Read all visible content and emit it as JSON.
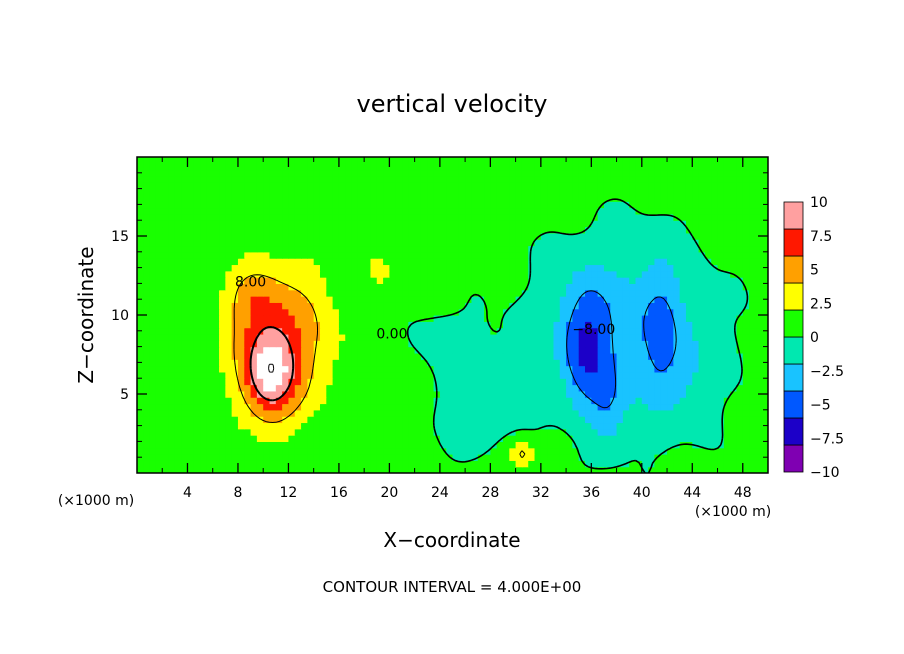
{
  "chart_data": {
    "type": "heatmap",
    "title": "vertical velocity",
    "xlabel": "X−coordinate",
    "ylabel": "Z−coordinate",
    "x_unit_left": "(×1000 m)",
    "x_unit_right": "(×1000 m)",
    "footer": "CONTOUR INTERVAL = 4.000E+00",
    "xlim": [
      0,
      50
    ],
    "ylim": [
      0,
      20
    ],
    "x_ticks": [
      "4",
      "8",
      "12",
      "16",
      "20",
      "24",
      "28",
      "32",
      "36",
      "40",
      "44",
      "48"
    ],
    "x_tick_values": [
      4,
      8,
      12,
      16,
      20,
      24,
      28,
      32,
      36,
      40,
      44,
      48
    ],
    "y_ticks": [
      "5",
      "10",
      "15"
    ],
    "y_tick_values": [
      5,
      10,
      15
    ],
    "colorbar": {
      "labels": [
        "10",
        "7.5",
        "5",
        "2.5",
        "0",
        "−2.5",
        "−5",
        "−7.5",
        "−10"
      ],
      "values": [
        10,
        7.5,
        5,
        2.5,
        0,
        -2.5,
        -5,
        -7.5,
        -10
      ],
      "range": [
        -10,
        10
      ],
      "colors": [
        "#7f00b2",
        "#1c00c8",
        "#0058ff",
        "#19c3ff",
        "#00e8b0",
        "#19ff00",
        "#ffff00",
        "#ffa000",
        "#ff1800",
        "#ffa0a0"
      ]
    },
    "contour_labels": [
      {
        "text": "8.00",
        "x": 9.0,
        "y": 11.8
      },
      {
        "text": "0.00",
        "x": 20.2,
        "y": 8.5
      },
      {
        "text": "−8.00",
        "x": 36.2,
        "y": 8.8
      }
    ],
    "features": [
      {
        "kind": "updraft",
        "x": 10.5,
        "z": 6.5,
        "peak": 13
      },
      {
        "kind": "downdraft",
        "x": 35.5,
        "z": 8.0,
        "peak": -10
      }
    ]
  }
}
